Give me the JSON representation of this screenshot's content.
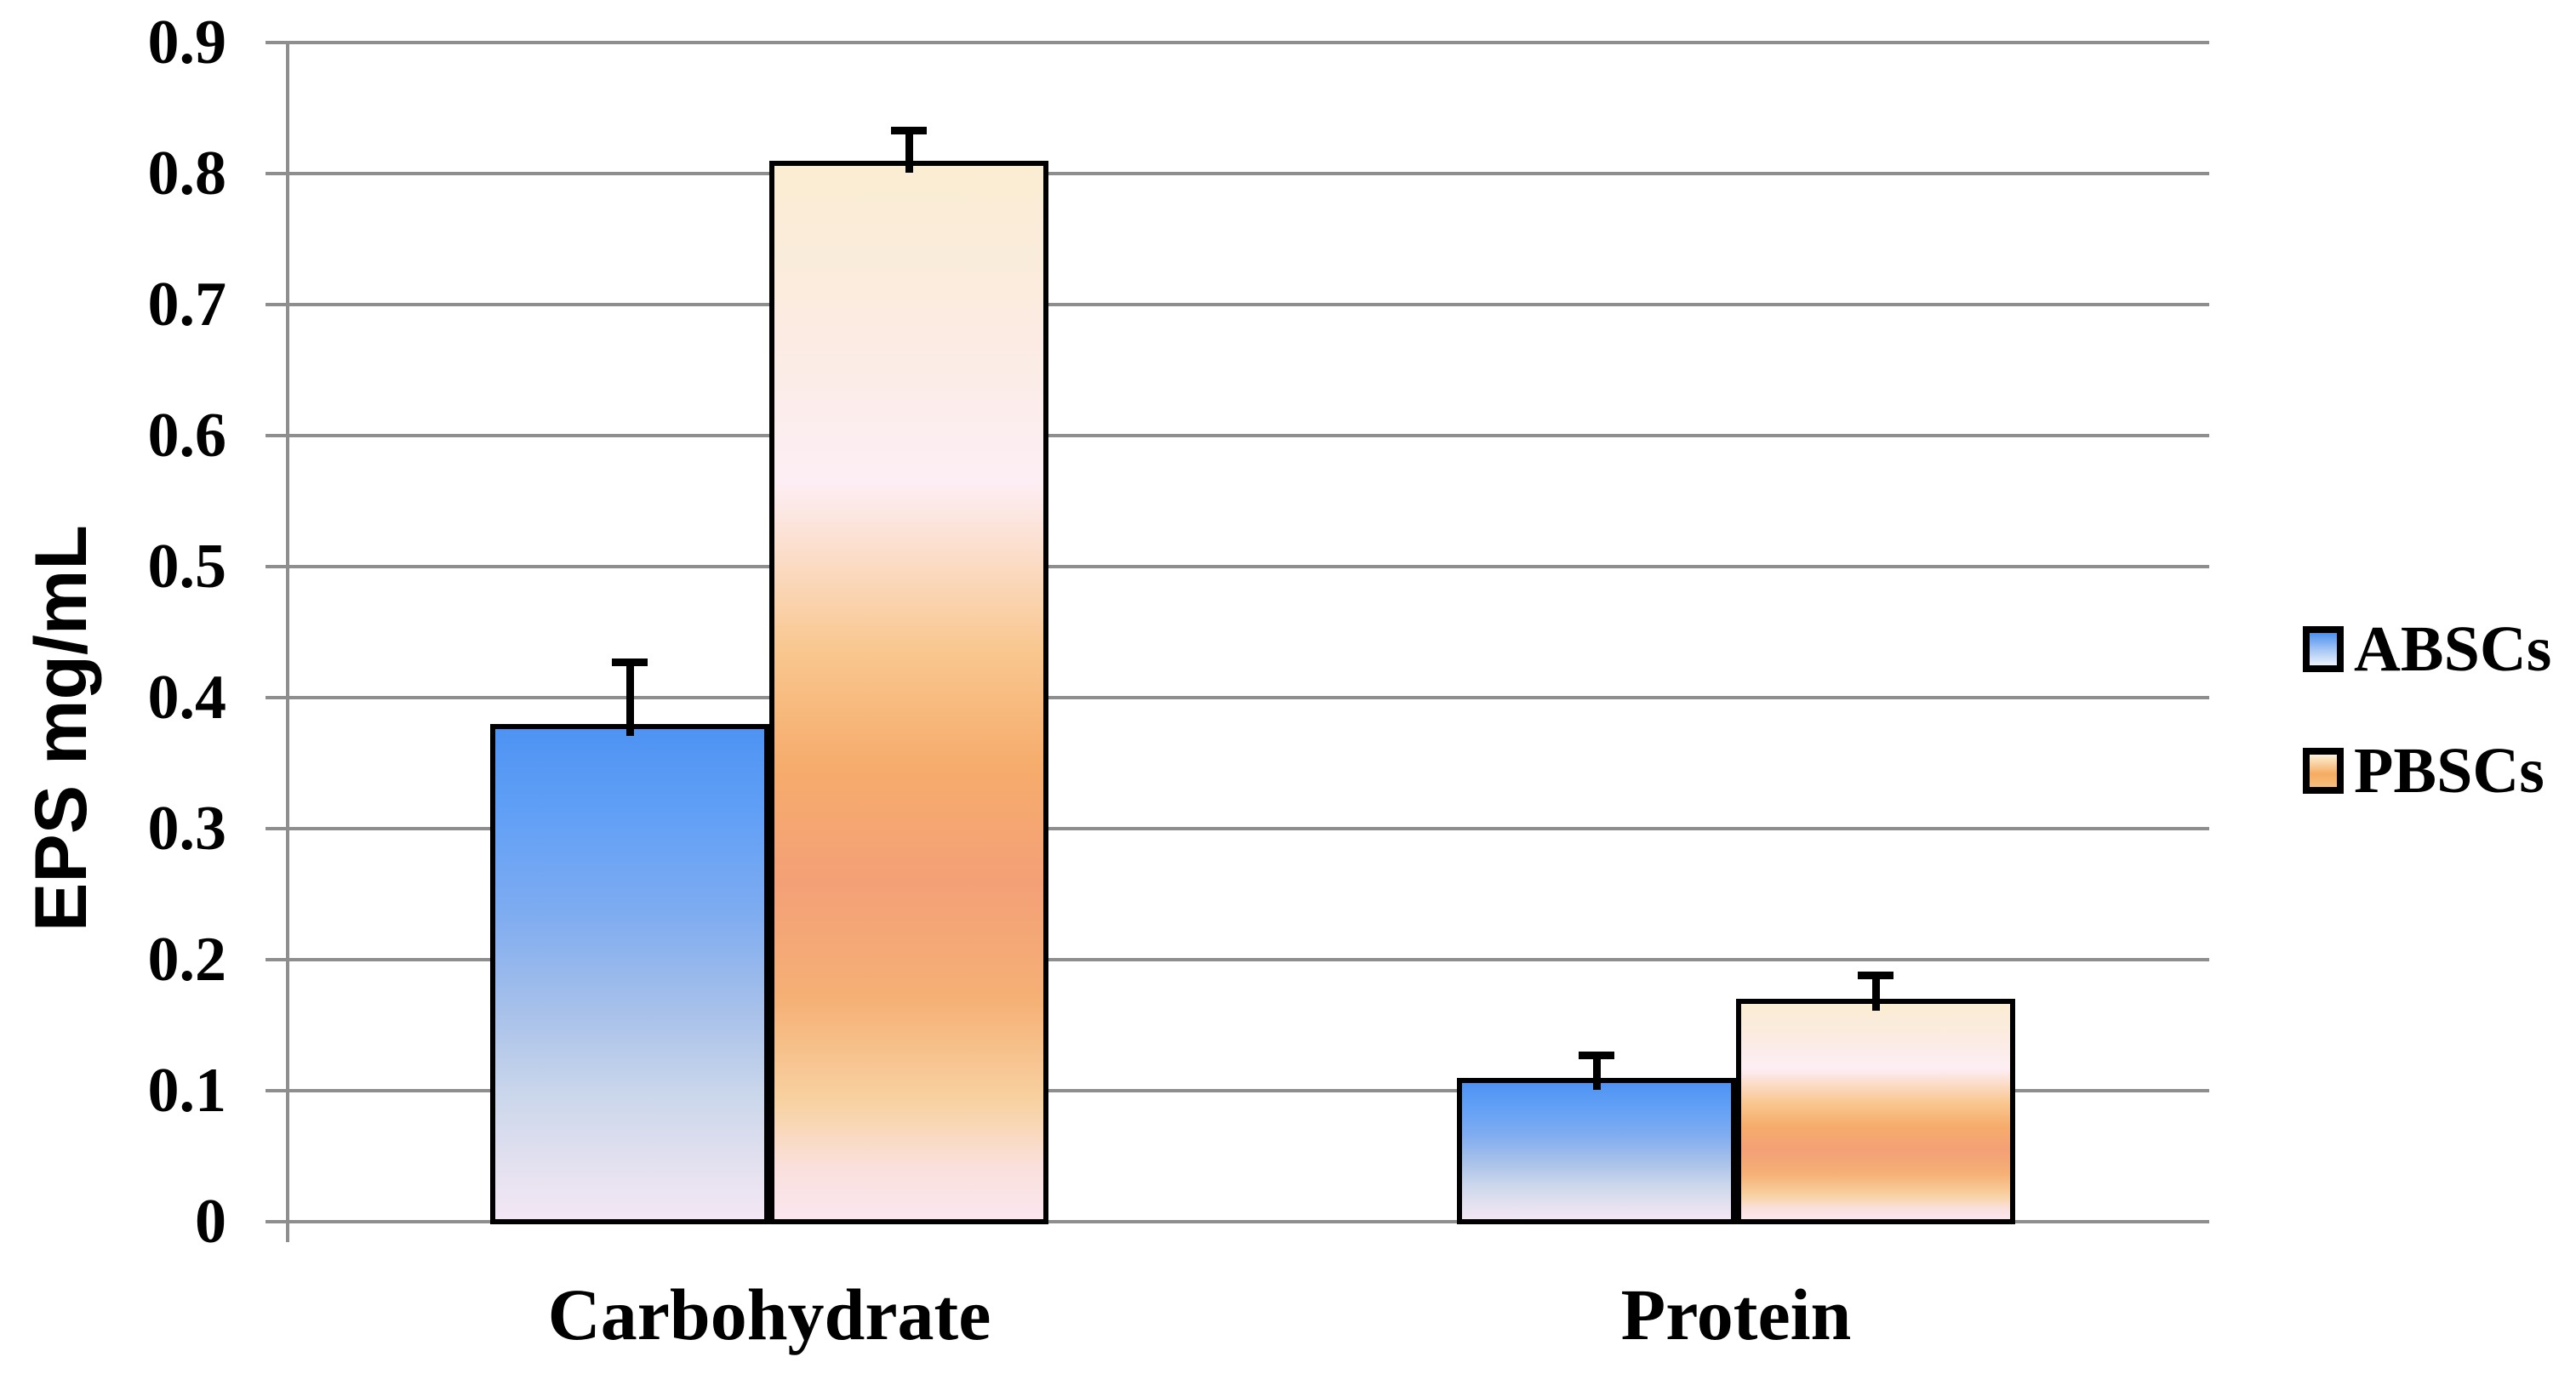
{
  "chart_data": {
    "type": "bar",
    "title": "",
    "xlabel": "",
    "ylabel": "EPS mg/mL",
    "categories": [
      "Carbohydrate",
      "Protein"
    ],
    "series": [
      {
        "name": "ABSCs",
        "values": [
          0.38,
          0.11
        ],
        "error_top": [
          0.427,
          0.127
        ],
        "bar_gradient": [
          [
            "#4E93F3",
            0
          ],
          [
            "#62A0F6",
            18
          ],
          [
            "#7FACF0",
            38
          ],
          [
            "#A8C1EA",
            58
          ],
          [
            "#CBD7EB",
            75
          ],
          [
            "#E5E1F0",
            90
          ],
          [
            "#F3E7F4",
            100
          ]
        ],
        "legend_gradient": [
          [
            "#4C90EE",
            0
          ],
          [
            "#A9C9F5",
            55
          ],
          [
            "#EDF2FB",
            100
          ]
        ]
      },
      {
        "name": "PBSCs",
        "values": [
          0.81,
          0.17
        ],
        "error_top": [
          0.833,
          0.188
        ],
        "bar_gradient": [
          [
            "#FAEDD2",
            0
          ],
          [
            "#FBEBE2",
            16
          ],
          [
            "#FDEEF5",
            30
          ],
          [
            "#F9C78F",
            46
          ],
          [
            "#F6AC6C",
            57
          ],
          [
            "#F4A077",
            68
          ],
          [
            "#F5B075",
            79
          ],
          [
            "#F8D2A2",
            89
          ],
          [
            "#FAE0DC",
            95
          ],
          [
            "#FBE6EF",
            100
          ]
        ],
        "legend_gradient": [
          [
            "#FDF2DA",
            0
          ],
          [
            "#F6AB60",
            60
          ],
          [
            "#F7BF80",
            100
          ]
        ]
      }
    ],
    "ylim": [
      0,
      0.9
    ],
    "ytick_step": 0.1,
    "ytick_labels": [
      "0",
      "0.1",
      "0.2",
      "0.3",
      "0.4",
      "0.5",
      "0.6",
      "0.7",
      "0.8",
      "0.9"
    ],
    "grid": true,
    "legend_position": "right",
    "bar_border_color": "#000000",
    "error_bar_color": "#000000",
    "gridline_color": "#8E8E8E",
    "axis_color": "#8E8E8E",
    "text_color": "#000000"
  }
}
